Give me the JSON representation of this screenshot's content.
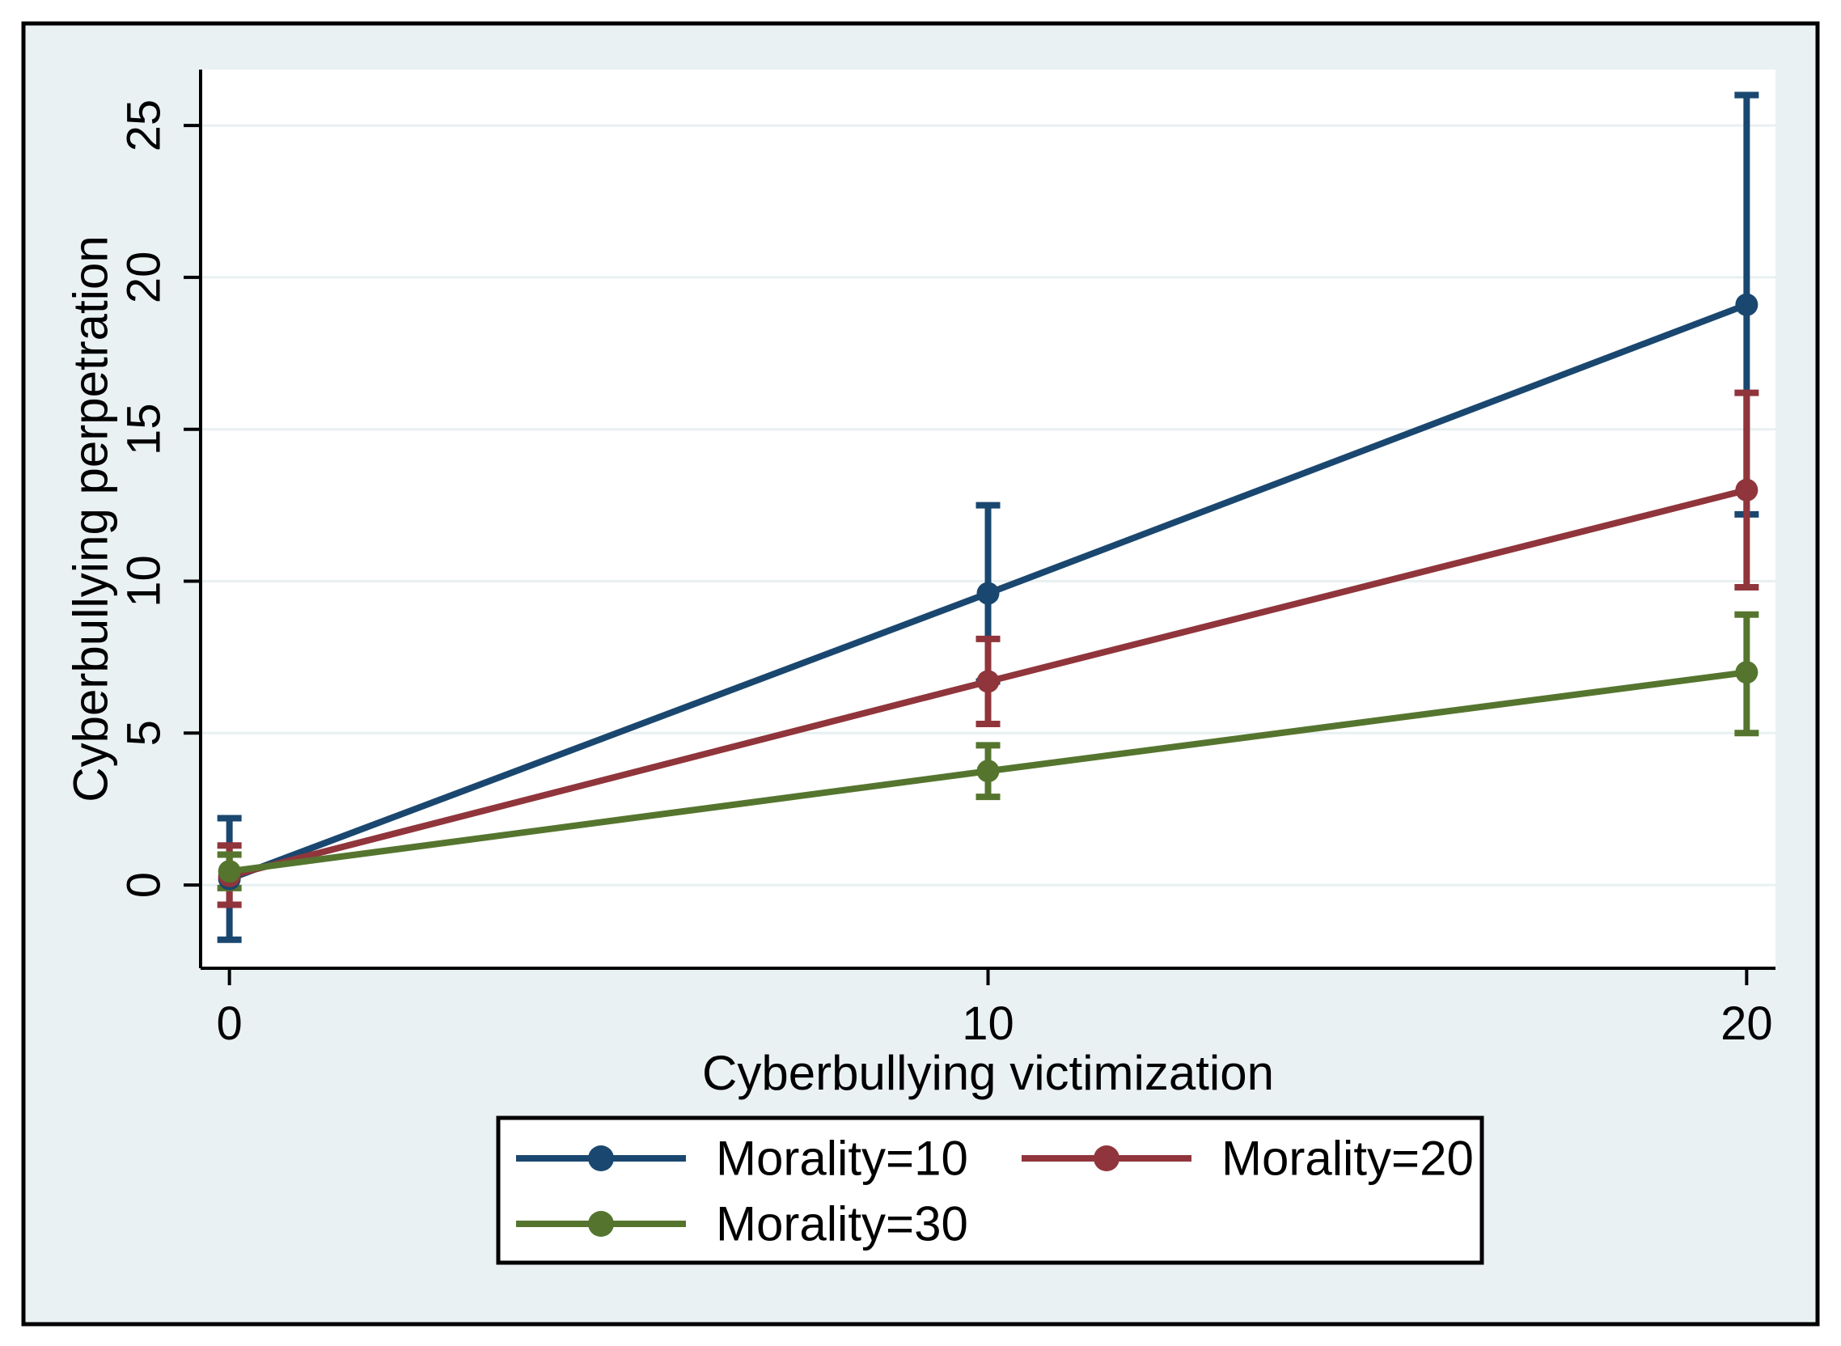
{
  "figure": {
    "page_background": "#ffffff",
    "inner_background": "#EAF1F3",
    "plot_background": "#ffffff",
    "border_color": "#000000",
    "grid_color": "#E8F0F2",
    "axis_color": "#000000",
    "legend_background": "#ffffff",
    "legend_border_color": "#000000"
  },
  "chart_data": {
    "type": "line",
    "title": "",
    "xlabel": "Cyberbullying victimization",
    "ylabel": "Cyberbullying perpetration",
    "x": [
      0,
      10,
      20
    ],
    "xticks": [
      0,
      10,
      20
    ],
    "xtick_labels": [
      "0",
      "10",
      "20"
    ],
    "yticks": [
      0,
      5,
      10,
      15,
      20,
      25
    ],
    "ytick_labels": [
      "0",
      "5",
      "10",
      "15",
      "20",
      "25"
    ],
    "xlim": [
      -0.38,
      20.38
    ],
    "ylim": [
      -2.74,
      26.84
    ],
    "grid": "horizontal",
    "error_bars": true,
    "legend_position": "bottom",
    "series": [
      {
        "name": "Morality=10",
        "color": "#1A476F",
        "y": [
          0.2,
          9.6,
          19.1
        ],
        "ci_low": [
          -1.8,
          6.7,
          12.2
        ],
        "ci_high": [
          2.2,
          12.5,
          26.0
        ]
      },
      {
        "name": "Morality=20",
        "color": "#90353B",
        "y": [
          0.3,
          6.7,
          13.0
        ],
        "ci_low": [
          -0.65,
          5.3,
          9.8
        ],
        "ci_high": [
          1.3,
          8.1,
          16.2
        ]
      },
      {
        "name": "Morality=30",
        "color": "#55752F",
        "y": [
          0.45,
          3.75,
          7.0
        ],
        "ci_low": [
          -0.1,
          2.9,
          5.0
        ],
        "ci_high": [
          1.0,
          4.6,
          8.9
        ]
      }
    ]
  }
}
